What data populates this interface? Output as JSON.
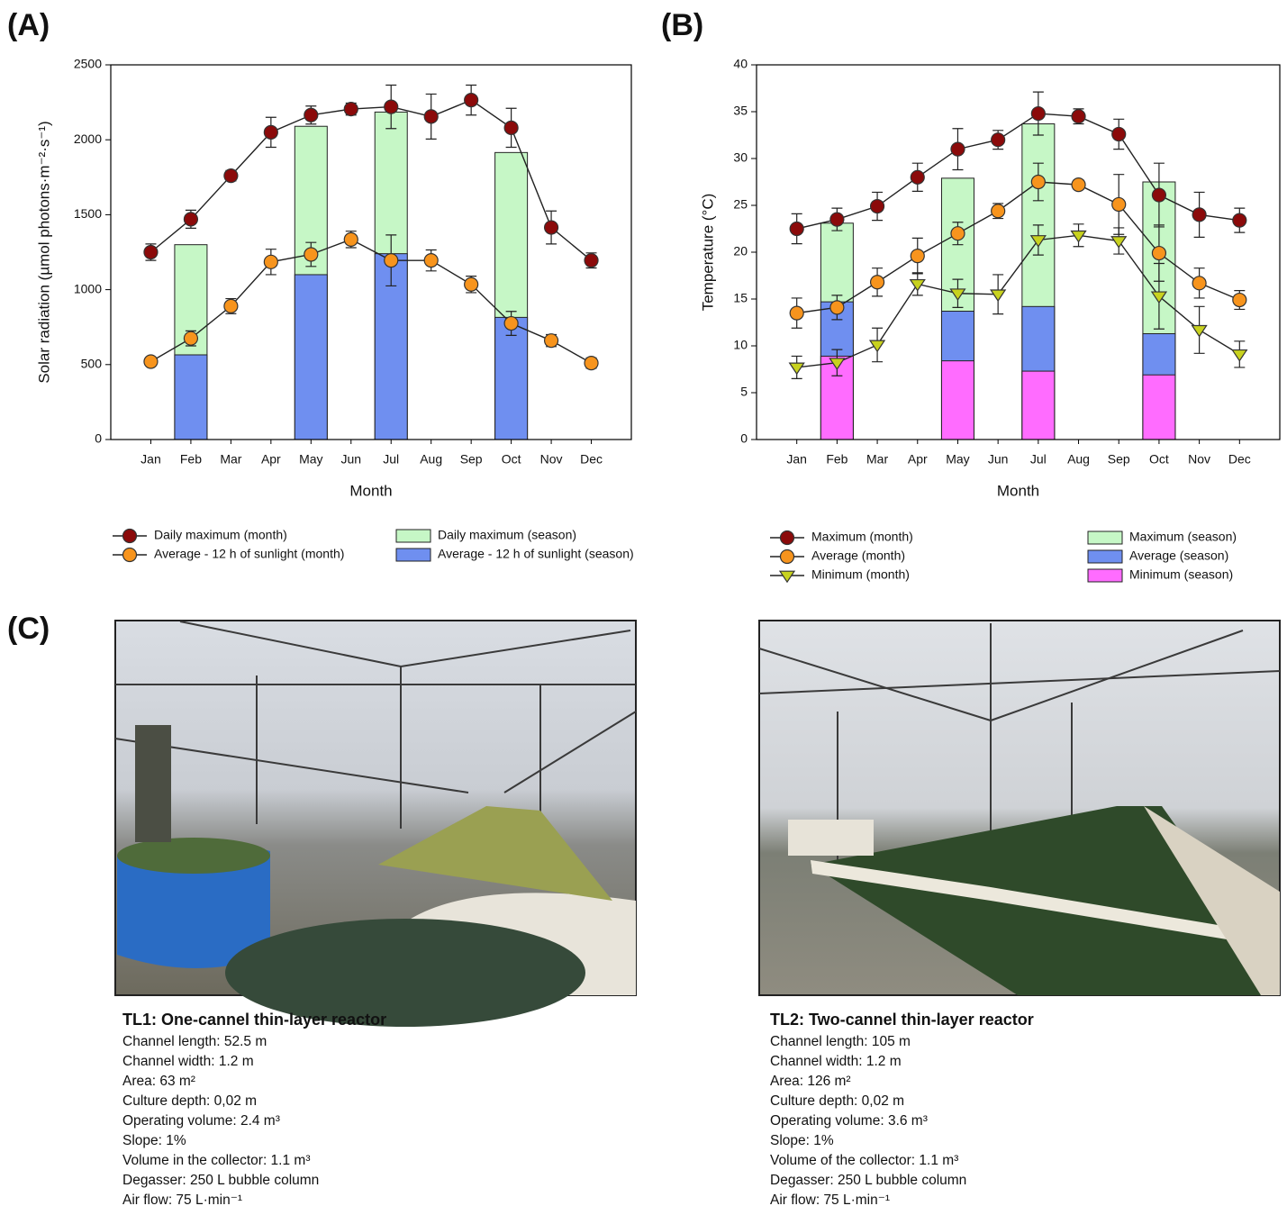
{
  "chart_data": [
    {
      "type": "combo",
      "title": "(A)",
      "x_label": "Month",
      "y_label": "Solar radiation (µmol photons·m⁻²·s⁻¹)",
      "categories": [
        "Jan",
        "Feb",
        "Mar",
        "Apr",
        "May",
        "Jun",
        "Jul",
        "Aug",
        "Sep",
        "Oct",
        "Nov",
        "Dec"
      ],
      "ylim": [
        0,
        2500
      ],
      "yticks": [
        0,
        500,
        1000,
        1500,
        2000,
        2500
      ],
      "series": [
        {
          "name": "Daily maximum (month)",
          "kind": "line",
          "marker": "circle",
          "color": "#8b0a0a",
          "values": [
            1250,
            1470,
            1760,
            2050,
            2165,
            2205,
            2220,
            2155,
            2265,
            2080,
            1415,
            1195
          ],
          "errors": [
            55,
            60,
            35,
            100,
            60,
            40,
            145,
            150,
            100,
            130,
            110,
            50
          ]
        },
        {
          "name": "Average - 12 h of sunlight (month)",
          "kind": "line",
          "marker": "circle",
          "color": "#f7941d",
          "values": [
            520,
            675,
            890,
            1185,
            1235,
            1335,
            1195,
            1195,
            1035,
            775,
            660,
            510
          ],
          "errors": [
            20,
            50,
            50,
            85,
            80,
            55,
            170,
            70,
            55,
            80,
            40,
            35
          ]
        },
        {
          "name": "Daily maximum (season)",
          "kind": "bar",
          "color": "#c6f7c6",
          "values": [
            null,
            1300,
            null,
            null,
            2090,
            null,
            2185,
            null,
            null,
            1915,
            null,
            null
          ]
        },
        {
          "name": "Average - 12 h of sunlight (season)",
          "kind": "bar",
          "color": "#6f8ff0",
          "values": [
            null,
            565,
            null,
            null,
            1100,
            null,
            1240,
            null,
            null,
            815,
            null,
            null
          ]
        }
      ]
    },
    {
      "type": "combo",
      "title": "(B)",
      "x_label": "Month",
      "y_label": "Temperature (°C)",
      "categories": [
        "Jan",
        "Feb",
        "Mar",
        "Apr",
        "May",
        "Jun",
        "Jul",
        "Aug",
        "Sep",
        "Oct",
        "Nov",
        "Dec"
      ],
      "ylim": [
        0,
        40
      ],
      "yticks": [
        0,
        5,
        10,
        15,
        20,
        25,
        30,
        35,
        40
      ],
      "series": [
        {
          "name": "Maximum (month)",
          "kind": "line",
          "marker": "circle",
          "color": "#8b0a0a",
          "values": [
            22.5,
            23.5,
            24.9,
            28.0,
            31.0,
            32.0,
            34.8,
            34.5,
            32.6,
            26.1,
            24.0,
            23.4
          ],
          "errors": [
            1.6,
            1.2,
            1.5,
            1.5,
            2.2,
            1.0,
            2.3,
            0.8,
            1.6,
            3.4,
            2.4,
            1.3
          ]
        },
        {
          "name": "Average (month)",
          "kind": "line",
          "marker": "circle",
          "color": "#f7941d",
          "values": [
            13.5,
            14.1,
            16.8,
            19.6,
            22.0,
            24.4,
            27.5,
            27.2,
            25.1,
            19.9,
            16.7,
            14.9
          ],
          "errors": [
            1.6,
            1.3,
            1.5,
            1.9,
            1.2,
            0.8,
            2.0,
            0.5,
            3.2,
            3.0,
            1.6,
            1.0
          ]
        },
        {
          "name": "Minimum (month)",
          "kind": "line",
          "marker": "triangle",
          "color": "#c8d21e",
          "values": [
            7.7,
            8.2,
            10.1,
            16.6,
            15.6,
            15.5,
            21.3,
            21.8,
            21.2,
            15.3,
            11.7,
            9.1
          ],
          "errors": [
            1.2,
            1.4,
            1.8,
            1.2,
            1.5,
            2.1,
            1.6,
            1.2,
            1.4,
            3.5,
            2.5,
            1.4
          ]
        },
        {
          "name": "Maximum (season)",
          "kind": "bar",
          "color": "#c6f7c6",
          "values": [
            null,
            23.1,
            null,
            null,
            27.9,
            null,
            33.7,
            null,
            null,
            27.5,
            null,
            null
          ]
        },
        {
          "name": "Average (season)",
          "kind": "bar",
          "color": "#6f8ff0",
          "values": [
            null,
            14.7,
            null,
            null,
            13.7,
            null,
            14.2,
            null,
            null,
            11.3,
            null,
            null
          ]
        },
        {
          "name": "Minimum (season)",
          "kind": "bar",
          "color": "#ff6cff",
          "values": [
            null,
            8.9,
            null,
            null,
            8.4,
            null,
            7.3,
            null,
            null,
            6.9,
            null,
            null
          ]
        }
      ]
    }
  ],
  "photos": {
    "label": "(C)",
    "reactors": [
      {
        "title": "TL1: One-cannel thin-layer reactor",
        "specs": [
          "Channel length: 52.5 m",
          "Channel width: 1.2 m",
          "Area: 63 m²",
          "Culture depth: 0,02 m",
          "Operating volume: 2.4 m³",
          "Slope: 1%",
          "Volume in the collector: 1.1 m³",
          "Degasser: 250 L bubble column",
          "Air flow: 75 L·min⁻¹"
        ]
      },
      {
        "title": "TL2: Two-cannel thin-layer reactor",
        "specs": [
          "Channel length: 105 m",
          "Channel width: 1.2 m",
          "Area: 126 m²",
          "Culture depth: 0,02 m",
          "Operating volume: 3.6 m³",
          "Slope: 1%",
          "Volume of the collector: 1.1 m³",
          "Degasser: 250 L bubble column",
          "Air flow: 75 L·min⁻¹"
        ]
      }
    ]
  }
}
